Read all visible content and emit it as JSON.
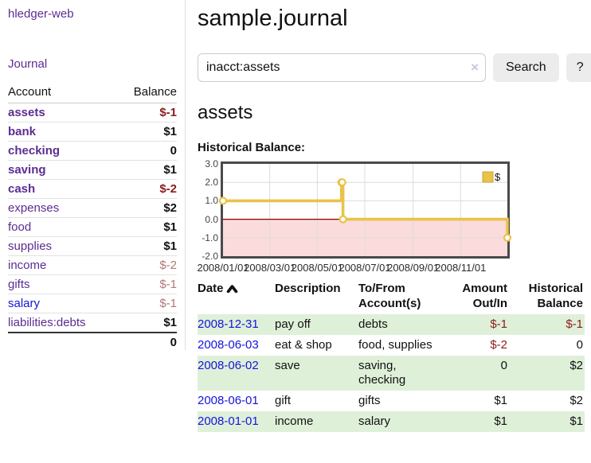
{
  "sidebar": {
    "brand": "hledger-web",
    "nav_journal": "Journal",
    "accounts_table": {
      "header_account": "Account",
      "header_balance": "Balance",
      "rows": [
        {
          "name": "assets",
          "level": 1,
          "bold": true,
          "name_color": "purple",
          "balance": "$-1",
          "balance_style": "bold-red"
        },
        {
          "name": "bank",
          "level": 2,
          "bold": true,
          "name_color": "purple",
          "balance": "$1",
          "balance_style": "bold-black"
        },
        {
          "name": "checking",
          "level": 3,
          "bold": true,
          "name_color": "purple",
          "balance": "0",
          "balance_style": "bold-black"
        },
        {
          "name": "saving",
          "level": 3,
          "bold": true,
          "name_color": "purple",
          "balance": "$1",
          "balance_style": "bold-black"
        },
        {
          "name": "cash",
          "level": 2,
          "bold": true,
          "name_color": "purple",
          "balance": "$-2",
          "balance_style": "bold-red"
        },
        {
          "name": "expenses",
          "level": 1,
          "bold": false,
          "name_color": "purple",
          "balance": "$2",
          "balance_style": "bold-black"
        },
        {
          "name": "food",
          "level": 2,
          "bold": false,
          "name_color": "purple",
          "balance": "$1",
          "balance_style": "bold-black"
        },
        {
          "name": "supplies",
          "level": 2,
          "bold": false,
          "name_color": "purple",
          "balance": "$1",
          "balance_style": "bold-black"
        },
        {
          "name": "income",
          "level": 1,
          "bold": false,
          "name_color": "purple",
          "balance": "$-2",
          "balance_style": "muted-red"
        },
        {
          "name": "gifts",
          "level": 2,
          "bold": false,
          "name_color": "purple",
          "balance": "$-1",
          "balance_style": "muted-red"
        },
        {
          "name": "salary",
          "level": 2,
          "bold": false,
          "name_color": "blue",
          "balance": "$-1",
          "balance_style": "muted-red"
        },
        {
          "name": "liabilities:debts",
          "level": 1,
          "bold": false,
          "name_color": "purple",
          "balance": "$1",
          "balance_style": "bold-black"
        }
      ],
      "total": "0"
    }
  },
  "main": {
    "title": "sample.journal",
    "search": {
      "value": "inacct:assets",
      "clear_icon": "×",
      "search_button": "Search",
      "help_button": "?"
    },
    "account_heading": "assets",
    "chart_label": "Historical Balance:",
    "transactions": {
      "headers": {
        "date": "Date",
        "description": "Description",
        "accounts": "To/From Account(s)",
        "amount": "Amount Out/In",
        "balance": "Historical Balance"
      },
      "rows": [
        {
          "date": "2008-12-31",
          "description": "pay off",
          "accounts": "debts",
          "amount": "$-1",
          "amount_neg": true,
          "balance": "$-1",
          "balance_neg": true
        },
        {
          "date": "2008-06-03",
          "description": "eat & shop",
          "accounts": "food, supplies",
          "amount": "$-2",
          "amount_neg": true,
          "balance": "0",
          "balance_neg": false
        },
        {
          "date": "2008-06-02",
          "description": "save",
          "accounts": "saving, checking",
          "amount": "0",
          "amount_neg": false,
          "balance": "$2",
          "balance_neg": false
        },
        {
          "date": "2008-06-01",
          "description": "gift",
          "accounts": "gifts",
          "amount": "$1",
          "amount_neg": false,
          "balance": "$2",
          "balance_neg": false
        },
        {
          "date": "2008-01-01",
          "description": "income",
          "accounts": "salary",
          "amount": "$1",
          "amount_neg": false,
          "balance": "$1",
          "balance_neg": false
        }
      ]
    }
  },
  "chart_data": {
    "type": "line",
    "title": "Historical Balance:",
    "step": true,
    "xrange": [
      "2008-01-01",
      "2008-12-31"
    ],
    "ylim": [
      -2,
      3
    ],
    "yticks": [
      {
        "value": 3,
        "label": "3.0"
      },
      {
        "value": 2,
        "label": "2.0"
      },
      {
        "value": 1,
        "label": "1.0"
      },
      {
        "value": 0,
        "label": "0.0"
      },
      {
        "value": -1,
        "label": "-1.0"
      },
      {
        "value": -2,
        "label": "-2.0"
      }
    ],
    "xticks": [
      {
        "date": "2008-01-01",
        "label": "2008/01/01"
      },
      {
        "date": "2008-03-01",
        "label": "2008/03/01"
      },
      {
        "date": "2008-05-01",
        "label": "2008/05/01"
      },
      {
        "date": "2008-07-01",
        "label": "2008/07/01"
      },
      {
        "date": "2008-09-01",
        "label": "2008/09/01"
      },
      {
        "date": "2008-11-01",
        "label": "2008/11/01"
      }
    ],
    "series": [
      {
        "name": "$",
        "color": "#e9c349",
        "points": [
          {
            "x": "2008-01-01",
            "y": 1
          },
          {
            "x": "2008-06-01",
            "y": 2
          },
          {
            "x": "2008-06-02",
            "y": 2
          },
          {
            "x": "2008-06-03",
            "y": 0
          },
          {
            "x": "2008-12-31",
            "y": -1
          }
        ]
      }
    ],
    "legend": [
      {
        "label": "$",
        "color": "#e9c349"
      }
    ],
    "legend_position": "top-right",
    "grid": true,
    "negative_fill": "#fbdbdb",
    "zero_line_color": "#8b0000"
  },
  "colors": {
    "accent_purple": "#5c2d91",
    "link_blue": "#1414dd",
    "negative_red": "#8b1c1c",
    "muted_negative_red": "#b37676",
    "row_green": "#dff0d8",
    "chart_line": "#e9c349",
    "chart_negative_fill": "#fbdbdb",
    "chart_zero_line": "#8b0000"
  }
}
